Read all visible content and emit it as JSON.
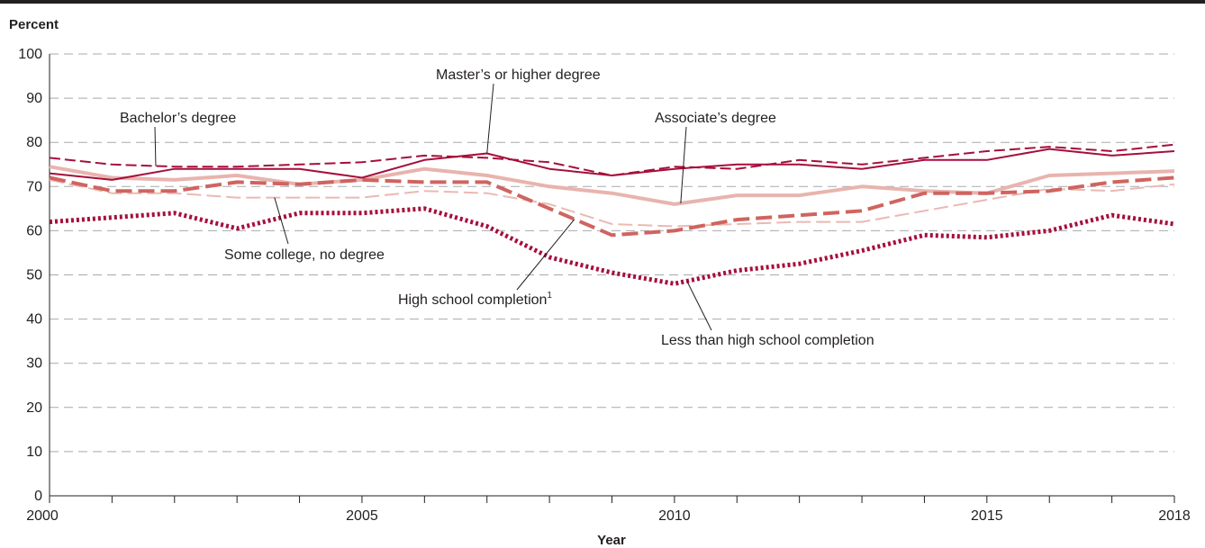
{
  "chart_data": {
    "type": "line",
    "title": "",
    "ylabel": "Percent",
    "xlabel": "Year",
    "ylim": [
      0,
      100
    ],
    "xlim": [
      2000,
      2018
    ],
    "yticks": [
      0,
      10,
      20,
      30,
      40,
      50,
      60,
      70,
      80,
      90,
      100
    ],
    "xticks": [
      2000,
      2005,
      2010,
      2015,
      2018
    ],
    "grid": true,
    "legend": "none",
    "x": [
      2000,
      2001,
      2002,
      2003,
      2004,
      2005,
      2006,
      2007,
      2008,
      2009,
      2010,
      2011,
      2012,
      2013,
      2014,
      2015,
      2016,
      2017,
      2018
    ],
    "series": [
      {
        "name": "Master’s or higher degree",
        "color": "#a50f3c",
        "values": [
          73,
          71.5,
          74,
          74,
          74,
          72,
          76,
          77.5,
          74,
          72.5,
          74,
          75,
          75,
          74,
          76,
          76,
          78.5,
          77,
          78
        ]
      },
      {
        "name": "Bachelor’s degree",
        "color": "#a50f3c",
        "values": [
          76.5,
          75,
          74.5,
          74.5,
          75,
          75.5,
          77,
          76.5,
          75.5,
          72.5,
          74.5,
          74,
          76,
          75,
          76.5,
          78,
          79,
          78,
          79.5
        ]
      },
      {
        "name": "Associate’s degree",
        "color": "#e8b4ae",
        "values": [
          74.5,
          72,
          71.5,
          72.5,
          70.5,
          71.5,
          74,
          72.5,
          70,
          68.5,
          66,
          68,
          68,
          70,
          69,
          68.5,
          72.5,
          73,
          73.5
        ]
      },
      {
        "name": "Some college, no degree",
        "color": "#eab9b3",
        "values": [
          71.5,
          68.5,
          68.5,
          67.5,
          67.5,
          67.5,
          69,
          68.5,
          66,
          61.5,
          61,
          61.5,
          62,
          62,
          64.5,
          67,
          69.5,
          69,
          70.5
        ]
      },
      {
        "name": "High school completion",
        "color": "#cf6460",
        "values": [
          72,
          69,
          69,
          71,
          70.5,
          71.5,
          71,
          71,
          65,
          59,
          60,
          62.5,
          63.5,
          64.5,
          68.5,
          68.5,
          69,
          71,
          72
        ]
      },
      {
        "name": "Less than high school completion",
        "color": "#a50f3c",
        "values": [
          62,
          63,
          64,
          60.5,
          64,
          64,
          65,
          61,
          54,
          50.5,
          48,
          51,
          52.5,
          55.5,
          59,
          58.5,
          60,
          63.5,
          61.5
        ]
      }
    ],
    "annotations": [
      {
        "text": "Master’s or higher degree",
        "series": 0
      },
      {
        "text": "Bachelor’s degree",
        "series": 1
      },
      {
        "text": "Associate’s degree",
        "series": 2
      },
      {
        "text": "Some college, no degree",
        "series": 3
      },
      {
        "text": "High school completion",
        "sup": "1",
        "series": 4
      },
      {
        "text": "Less than high school completion",
        "series": 5
      }
    ]
  }
}
